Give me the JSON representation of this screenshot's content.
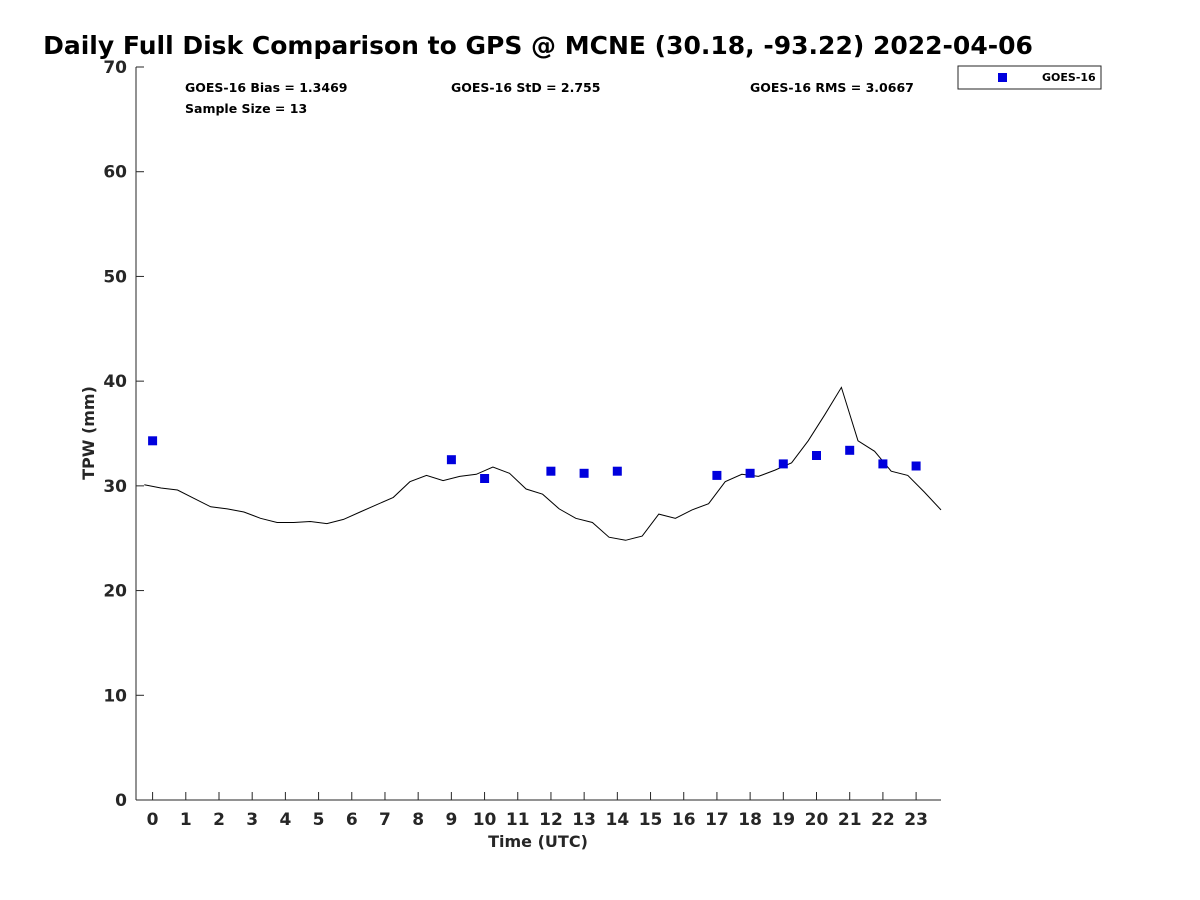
{
  "chart_data": {
    "type": "scatter",
    "title": "Daily Full Disk Comparison to GPS @ MCNE (30.18, -93.22) 2022-04-06",
    "xlabel": "Time (UTC)",
    "ylabel": "TPW (mm)",
    "xlim": [
      -0.5,
      23.75
    ],
    "ylim": [
      0,
      70
    ],
    "x_ticks": [
      0,
      1,
      2,
      3,
      4,
      5,
      6,
      7,
      8,
      9,
      10,
      11,
      12,
      13,
      14,
      15,
      16,
      17,
      18,
      19,
      20,
      21,
      22,
      23
    ],
    "y_ticks": [
      0,
      10,
      20,
      30,
      40,
      50,
      60,
      70
    ],
    "grid": false,
    "legend_position": "outside-top-right",
    "stats": {
      "bias": "GOES-16 Bias = 1.3469",
      "std": "GOES-16 StD = 2.755",
      "rms": "GOES-16 RMS = 3.0667",
      "sample": "Sample Size = 13"
    },
    "series": [
      {
        "name": "GOES-16",
        "kind": "scatter",
        "color": "#0000dd",
        "marker": "square",
        "x": [
          0,
          9,
          10,
          12,
          13,
          14,
          17,
          18,
          19,
          20,
          21,
          22,
          23
        ],
        "y": [
          34.3,
          32.5,
          30.7,
          31.4,
          31.2,
          31.4,
          31.0,
          31.2,
          32.1,
          32.9,
          33.4,
          32.1,
          31.9
        ]
      },
      {
        "kind": "line",
        "color": "#000000",
        "x": [
          -0.25,
          0.25,
          0.75,
          1.25,
          1.75,
          2.25,
          2.75,
          3.25,
          3.75,
          4.25,
          4.75,
          5.25,
          5.75,
          6.25,
          6.75,
          7.25,
          7.75,
          8.25,
          8.75,
          9.25,
          9.75,
          10.25,
          10.75,
          11.25,
          11.75,
          12.25,
          12.75,
          13.25,
          13.75,
          14.25,
          14.75,
          15.25,
          15.75,
          16.25,
          16.75,
          17.25,
          17.75,
          18.25,
          18.75,
          19.25,
          19.75,
          20.25,
          20.75,
          21.25,
          21.75,
          22.25,
          22.75,
          23.25,
          23.75
        ],
        "y": [
          30.1,
          29.8,
          29.6,
          28.8,
          28.0,
          27.8,
          27.5,
          26.9,
          26.5,
          26.5,
          26.6,
          26.4,
          26.8,
          27.5,
          28.2,
          28.9,
          30.4,
          31.0,
          30.5,
          30.9,
          31.1,
          31.8,
          31.2,
          29.7,
          29.2,
          27.8,
          26.9,
          26.5,
          25.1,
          24.8,
          25.2,
          27.3,
          26.9,
          27.7,
          28.3,
          30.4,
          31.1,
          30.9,
          31.5,
          32.2,
          34.3,
          36.8,
          39.4,
          34.3,
          33.3,
          31.4,
          31.0,
          29.4,
          27.7
        ]
      }
    ]
  }
}
